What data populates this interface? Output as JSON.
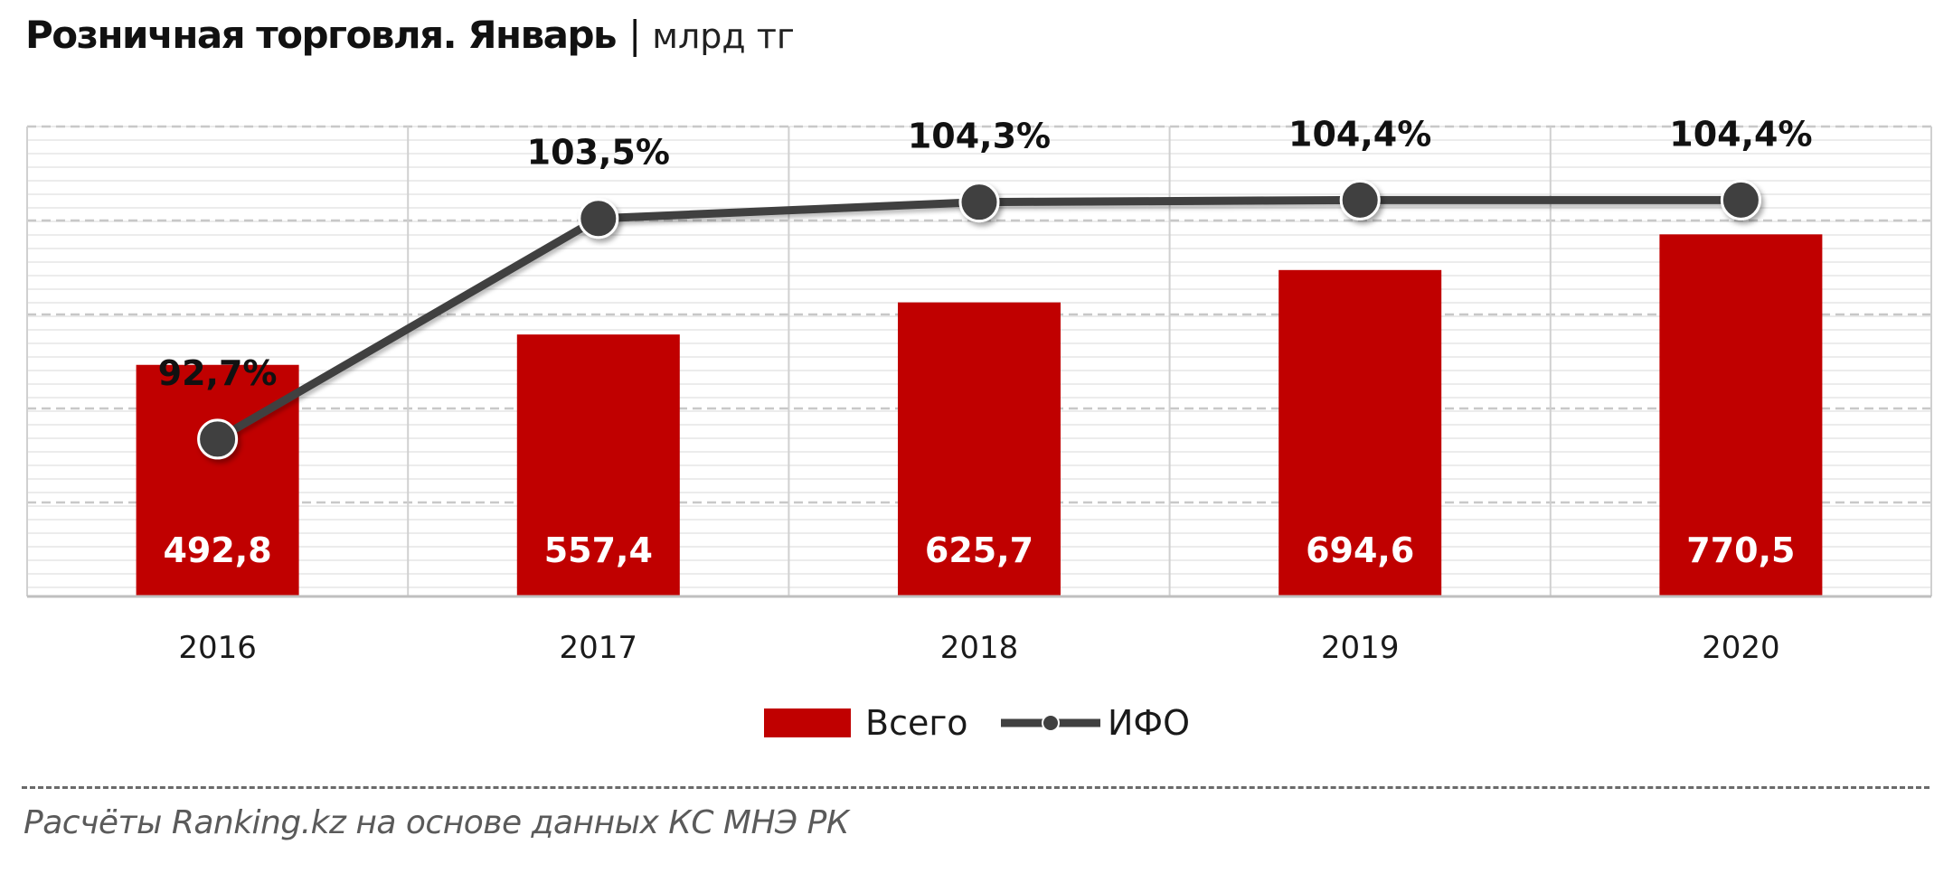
{
  "header": {
    "title": "Розничная торговля. Январь",
    "separator": "|",
    "unit": "млрд тг"
  },
  "chart_data": {
    "type": "bar",
    "categories": [
      "2016",
      "2017",
      "2018",
      "2019",
      "2020"
    ],
    "series": [
      {
        "name": "Всего",
        "type": "bar",
        "values": [
          492.8,
          557.4,
          625.7,
          694.6,
          770.5
        ],
        "labels": [
          "492,8",
          "557,4",
          "625,7",
          "694,6",
          "770,5"
        ],
        "color": "#c00000"
      },
      {
        "name": "ИФО",
        "type": "line",
        "values": [
          92.7,
          103.5,
          104.3,
          104.4,
          104.4
        ],
        "labels": [
          "92,7%",
          "103,5%",
          "104,3%",
          "104,4%",
          "104,4%"
        ],
        "color": "#404040"
      }
    ],
    "bar_axis_range": [
      0,
      1000
    ],
    "line_axis_range": [
      85,
      108
    ],
    "grid": true,
    "legend_position": "bottom"
  },
  "source": "Расчёты Ranking.kz на основе данных  КС МНЭ РК"
}
